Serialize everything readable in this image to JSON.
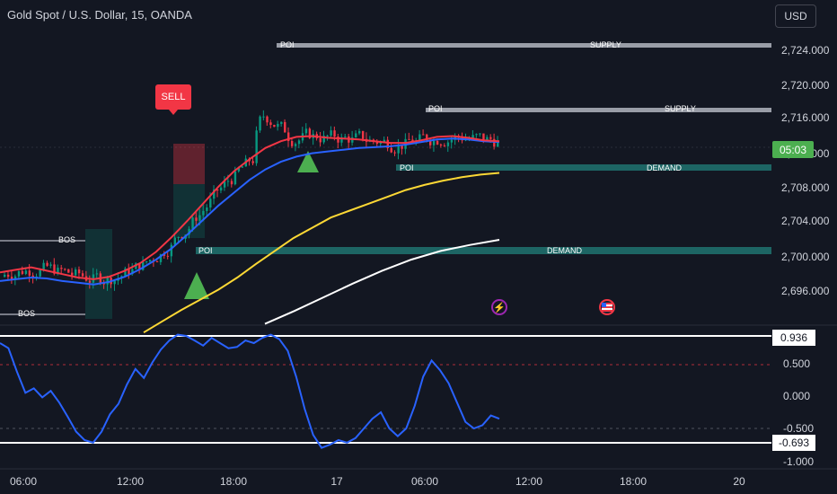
{
  "header": {
    "title": "Gold Spot / U.S. Dollar, 15, OANDA",
    "currency_button": "USD"
  },
  "price_axis": {
    "labels": [
      "2,724.000",
      "2,720.000",
      "2,716.000",
      "2,712.000",
      "2,708.000",
      "2,704.000",
      "2,700.000",
      "2,696.000"
    ],
    "current_price_countdown": "05:03",
    "countdown_color": "#4caf50"
  },
  "oscillator": {
    "upper_level": "0.936",
    "lower_level": "-0.693",
    "axis_labels": [
      "0.500",
      "0.000",
      "-0.500",
      "-1.000"
    ]
  },
  "time_axis": {
    "labels": [
      "06:00",
      "12:00",
      "18:00",
      "17",
      "06:00",
      "12:00",
      "18:00",
      "20"
    ]
  },
  "zones": {
    "supply": [
      {
        "poi": "POI",
        "label": "SUPPLY"
      },
      {
        "poi": "POI",
        "label": "SUPPLY"
      }
    ],
    "demand": [
      {
        "poi": "POI",
        "label": "DEMAND"
      },
      {
        "poi": "POI",
        "label": "DEMAND"
      }
    ]
  },
  "annotations": {
    "sell_label": "SELL",
    "bos_labels": [
      "BOS",
      "BOS"
    ]
  },
  "events": [
    {
      "icon": "lightning-icon",
      "color": "#9c27b0"
    },
    {
      "icon": "us-flag-icon",
      "color": "#f23645"
    }
  ],
  "colors": {
    "bull": "#089981",
    "bear": "#f23645",
    "ema_fast": "#f23645",
    "ema_mid": "#2962ff",
    "ema_slow": "#fdd835",
    "ema_long": "#ffffff",
    "oscillator": "#2962ff",
    "demand_zone": "#26a69a"
  },
  "chart_data": [
    {
      "type": "line",
      "title": "",
      "ylabel": "",
      "ylim": [
        2692,
        2726
      ],
      "x_ticks": [
        "06:00",
        "12:00",
        "18:00",
        "17",
        "06:00",
        "12:00",
        "18:00",
        "20"
      ],
      "series": [
        {
          "values": [
            2698.0,
            2698.3,
            2698.6,
            2698.2,
            2697.8,
            2697.4,
            2697.2,
            2697.5,
            2698.2,
            2699.1,
            2700.4,
            2702.1,
            2704.0,
            2706.0,
            2708.0,
            2709.8,
            2711.2,
            2712.5,
            2713.3,
            2713.8,
            2713.9,
            2713.7,
            2713.6,
            2713.5,
            2713.3,
            2713.1,
            2713.1,
            2713.4,
            2713.8,
            2713.9,
            2713.7,
            2713.4,
            2713.3
          ]
        },
        {
          "values": [
            2697.0,
            2697.2,
            2697.4,
            2697.3,
            2697.0,
            2696.8,
            2696.6,
            2696.9,
            2697.5,
            2698.4,
            2699.5,
            2700.8,
            2702.4,
            2704.1,
            2705.8,
            2707.3,
            2708.8,
            2710.0,
            2710.9,
            2711.5,
            2711.9,
            2712.1,
            2712.3,
            2712.5,
            2712.6,
            2712.7,
            2712.9,
            2713.2,
            2713.5,
            2713.6,
            2713.5,
            2713.3,
            2713.2
          ]
        },
        {
          "values": [
            2691.0,
            2692.3,
            2693.6,
            2694.8,
            2696.0,
            2697.4,
            2699.0,
            2700.5,
            2702.0,
            2703.2,
            2704.4,
            2705.2,
            2706.0,
            2706.8,
            2707.6,
            2708.2,
            2708.7,
            2709.1,
            2709.4,
            2709.6
          ]
        },
        {
          "values": [
            2692.0,
            2693.5,
            2695.1,
            2696.7,
            2698.2,
            2699.5,
            2700.5,
            2701.2,
            2701.8
          ]
        }
      ]
    },
    {
      "type": "line",
      "title": "",
      "ylabel": "",
      "ylim": [
        -1.1,
        1.05
      ],
      "x_ticks": [
        "06:00",
        "12:00",
        "18:00",
        "17",
        "06:00",
        "12:00",
        "18:00",
        "20"
      ],
      "series": [
        {
          "values": [
            0.82,
            0.74,
            0.38,
            0.05,
            0.12,
            -0.02,
            0.08,
            -0.1,
            -0.32,
            -0.55,
            -0.68,
            -0.72,
            -0.55,
            -0.28,
            -0.12,
            0.18,
            0.42,
            0.28,
            0.52,
            0.72,
            0.86,
            0.95,
            0.93,
            0.86,
            0.78,
            0.9,
            0.82,
            0.74,
            0.76,
            0.86,
            0.82,
            0.9,
            0.95,
            0.88,
            0.7,
            0.3,
            -0.2,
            -0.6,
            -0.8,
            -0.75,
            -0.68,
            -0.72,
            -0.65,
            -0.5,
            -0.35,
            -0.25,
            -0.5,
            -0.62,
            -0.5,
            -0.15,
            0.3,
            0.55,
            0.4,
            0.2,
            -0.1,
            -0.4,
            -0.5,
            -0.45,
            -0.3,
            -0.35
          ]
        }
      ]
    }
  ]
}
